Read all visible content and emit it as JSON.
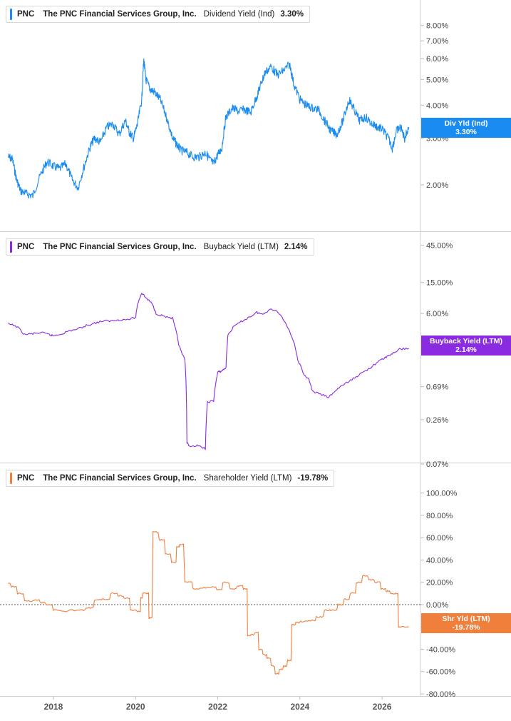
{
  "panels": [
    {
      "ticker": "PNC",
      "company": "The PNC Financial Services Group, Inc.",
      "metric": "Dividend Yield (Ind)",
      "value": "3.30%",
      "badge_line1": "Div Yld (Ind)",
      "badge_line2": "3.30%",
      "color": "#1a8bf0"
    },
    {
      "ticker": "PNC",
      "company": "The PNC Financial Services Group, Inc.",
      "metric": "Buyback Yield (LTM)",
      "value": "2.14%",
      "badge_line1": "Buyback Yield (LTM)",
      "badge_line2": "2.14%",
      "color": "#8a2be2"
    },
    {
      "ticker": "PNC",
      "company": "The PNC Financial Services Group, Inc.",
      "metric": "Shareholder Yield (LTM)",
      "value": "-19.78%",
      "badge_line1": "Shr Yld (LTM)",
      "badge_line2": "-19.78%",
      "color": "#f07f3c"
    }
  ],
  "chart_data": [
    {
      "type": "line",
      "name": "Dividend Yield (Ind)",
      "yscale": "log",
      "ylim": [
        1.55,
        9.5
      ],
      "yticks": [
        "8.00%",
        "7.00%",
        "6.00%",
        "5.00%",
        "4.00%",
        "3.00%",
        "2.00%"
      ],
      "ytick_values": [
        8,
        7,
        6,
        5,
        4,
        3,
        2
      ],
      "x": [
        2016.9,
        2017.0,
        2017.1,
        2017.2,
        2017.35,
        2017.5,
        2017.7,
        2017.85,
        2018.0,
        2018.15,
        2018.3,
        2018.45,
        2018.6,
        2018.75,
        2018.9,
        2019.0,
        2019.15,
        2019.3,
        2019.45,
        2019.6,
        2019.75,
        2019.85,
        2019.95,
        2020.05,
        2020.15,
        2020.2,
        2020.25,
        2020.35,
        2020.45,
        2020.6,
        2020.75,
        2020.9,
        2021.0,
        2021.1,
        2021.25,
        2021.4,
        2021.55,
        2021.7,
        2021.8,
        2021.9,
        2022.0,
        2022.1,
        2022.2,
        2022.35,
        2022.5,
        2022.65,
        2022.8,
        2022.95,
        2023.05,
        2023.15,
        2023.3,
        2023.45,
        2023.6,
        2023.75,
        2023.85,
        2024.0,
        2024.15,
        2024.3,
        2024.45,
        2024.6,
        2024.75,
        2024.9,
        2025.05,
        2025.2,
        2025.3,
        2025.45,
        2025.6,
        2025.75,
        2025.9,
        2026.0,
        2026.15,
        2026.25,
        2026.35,
        2026.45,
        2026.55,
        2026.65
      ],
      "y": [
        2.55,
        2.5,
        2.1,
        1.9,
        1.85,
        1.82,
        2.2,
        2.45,
        2.35,
        2.3,
        2.4,
        2.1,
        1.95,
        2.35,
        2.8,
        3.0,
        2.9,
        3.3,
        3.4,
        3.1,
        3.5,
        3.15,
        3.0,
        3.4,
        4.2,
        5.9,
        5.0,
        4.6,
        4.5,
        4.2,
        3.6,
        3.0,
        2.85,
        2.7,
        2.65,
        2.55,
        2.55,
        2.65,
        2.5,
        2.4,
        2.6,
        2.75,
        3.6,
        3.9,
        3.8,
        3.85,
        3.75,
        4.3,
        4.8,
        5.3,
        5.6,
        5.2,
        5.4,
        5.7,
        4.8,
        4.2,
        4.0,
        3.9,
        3.85,
        3.5,
        3.2,
        3.1,
        3.5,
        4.2,
        3.9,
        3.5,
        3.6,
        3.4,
        3.3,
        3.25,
        3.0,
        2.75,
        3.2,
        3.3,
        3.0,
        3.3
      ]
    },
    {
      "type": "line",
      "name": "Buyback Yield (LTM)",
      "yscale": "log",
      "ylim": [
        0.07,
        60
      ],
      "yticks": [
        "45.00%",
        "15.00%",
        "6.00%",
        "0.69%",
        "0.26%",
        "0.07%"
      ],
      "ytick_values": [
        45,
        15,
        6,
        0.69,
        0.26,
        0.07
      ],
      "x": [
        2016.9,
        2017.1,
        2017.3,
        2017.5,
        2017.7,
        2017.9,
        2018.0,
        2018.2,
        2018.4,
        2018.6,
        2018.8,
        2019.0,
        2019.2,
        2019.4,
        2019.6,
        2019.8,
        2020.0,
        2020.05,
        2020.15,
        2020.25,
        2020.4,
        2020.5,
        2020.7,
        2020.9,
        2021.05,
        2021.2,
        2021.25,
        2021.3,
        2021.5,
        2021.7,
        2021.75,
        2021.9,
        2022.0,
        2022.1,
        2022.2,
        2022.25,
        2022.4,
        2022.6,
        2022.8,
        2022.95,
        2023.1,
        2023.3,
        2023.5,
        2023.7,
        2023.85,
        2023.95,
        2024.1,
        2024.2,
        2024.3,
        2024.5,
        2024.7,
        2024.85,
        2025.0,
        2025.2,
        2025.4,
        2025.6,
        2025.8,
        2026.0,
        2026.15,
        2026.3,
        2026.45,
        2026.65
      ],
      "y": [
        4.4,
        4.1,
        3.2,
        3.3,
        3.4,
        3.2,
        3.1,
        3.3,
        3.6,
        3.8,
        4.2,
        4.5,
        4.8,
        4.8,
        5.0,
        5.0,
        5.3,
        8.0,
        11.0,
        9.5,
        8.0,
        6.0,
        5.5,
        5.2,
        2.3,
        1.5,
        0.13,
        0.12,
        0.12,
        0.11,
        0.44,
        0.45,
        1.05,
        1.1,
        1.2,
        3.2,
        4.1,
        4.8,
        5.5,
        6.2,
        5.8,
        7.0,
        6.0,
        4.0,
        2.6,
        1.5,
        0.95,
        0.9,
        0.6,
        0.55,
        0.5,
        0.6,
        0.7,
        0.8,
        0.95,
        1.1,
        1.3,
        1.55,
        1.7,
        1.9,
        2.1,
        2.14
      ]
    },
    {
      "type": "line",
      "name": "Shareholder Yield (LTM)",
      "yscale": "linear",
      "ylim": [
        -80,
        110
      ],
      "yticks": [
        "100.00%",
        "80.00%",
        "60.00%",
        "40.00%",
        "20.00%",
        "0.00%",
        "-20",
        "-40.00%",
        "-60.00%",
        "-80.00%"
      ],
      "ytick_values": [
        100,
        80,
        60,
        40,
        20,
        0,
        -20,
        -40,
        -60,
        -80
      ],
      "zero_line": true,
      "x": [
        2016.9,
        2017.05,
        2017.2,
        2017.4,
        2017.6,
        2017.75,
        2017.9,
        2018.1,
        2018.3,
        2018.5,
        2018.7,
        2018.9,
        2019.1,
        2019.3,
        2019.5,
        2019.65,
        2019.8,
        2019.95,
        2020.1,
        2020.15,
        2020.2,
        2020.3,
        2020.35,
        2020.5,
        2020.65,
        2020.8,
        2020.95,
        2021.05,
        2021.1,
        2021.3,
        2021.5,
        2021.7,
        2021.9,
        2022.05,
        2022.2,
        2022.4,
        2022.55,
        2022.7,
        2022.75,
        2022.85,
        2022.95,
        2023.05,
        2023.15,
        2023.25,
        2023.35,
        2023.45,
        2023.55,
        2023.65,
        2023.75,
        2023.85,
        2023.95,
        2024.1,
        2024.3,
        2024.5,
        2024.7,
        2024.85,
        2025.0,
        2025.15,
        2025.3,
        2025.45,
        2025.6,
        2025.75,
        2025.9,
        2026.05,
        2026.15,
        2026.25,
        2026.35,
        2026.45,
        2026.65
      ],
      "y": [
        19,
        16,
        10,
        3,
        4,
        2,
        0,
        -5,
        -6,
        -5,
        -5,
        -3,
        4,
        5,
        10,
        8,
        6,
        -5,
        -6,
        6,
        10,
        10,
        -12,
        65,
        58,
        45,
        38,
        52,
        54,
        20,
        14,
        15,
        16,
        13,
        20,
        14,
        17,
        14,
        -28,
        -27,
        -25,
        -40,
        -45,
        -48,
        -55,
        -62,
        -58,
        -55,
        -50,
        -18,
        -16,
        -15,
        -14,
        -11,
        -5,
        -5,
        0,
        5,
        10,
        20,
        26,
        22,
        20,
        14,
        12,
        10,
        10,
        -20,
        -20
      ]
    }
  ],
  "x_axis": {
    "xlim": [
      2016.7,
      2026.9
    ],
    "tick_values": [
      2018,
      2020,
      2022,
      2024,
      2026
    ],
    "tick_labels": [
      "2018",
      "2020",
      "2022",
      "2024",
      "2026"
    ]
  }
}
